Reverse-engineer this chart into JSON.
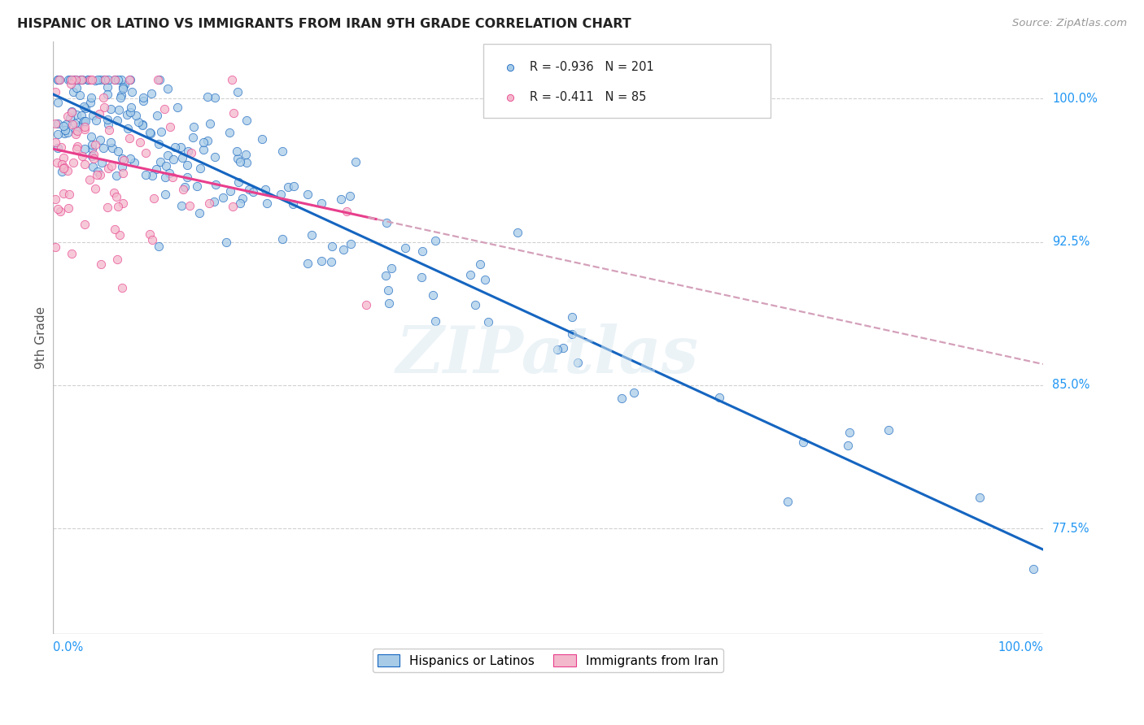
{
  "title": "HISPANIC OR LATINO VS IMMIGRANTS FROM IRAN 9TH GRADE CORRELATION CHART",
  "source": "Source: ZipAtlas.com",
  "ylabel": "9th Grade",
  "ytick_labels": [
    "100.0%",
    "92.5%",
    "85.0%",
    "77.5%"
  ],
  "ytick_values": [
    1.0,
    0.925,
    0.85,
    0.775
  ],
  "xtick_left": "0.0%",
  "xtick_right": "100.0%",
  "r_blue": -0.936,
  "n_blue": 201,
  "r_pink": -0.411,
  "n_pink": 85,
  "color_blue": "#a8cce8",
  "color_pink": "#f4b8cc",
  "line_blue": "#1565c0",
  "line_pink": "#e83e8c",
  "line_pink_dashed": "#d4a0ba",
  "legend_label_blue": "Hispanics or Latinos",
  "legend_label_pink": "Immigrants from Iran",
  "watermark": "ZIPatlas",
  "xlim": [
    0.0,
    1.0
  ],
  "ylim": [
    0.72,
    1.03
  ],
  "blue_intercept": 1.005,
  "blue_slope": -0.245,
  "pink_intercept": 0.978,
  "pink_slope": -0.092
}
